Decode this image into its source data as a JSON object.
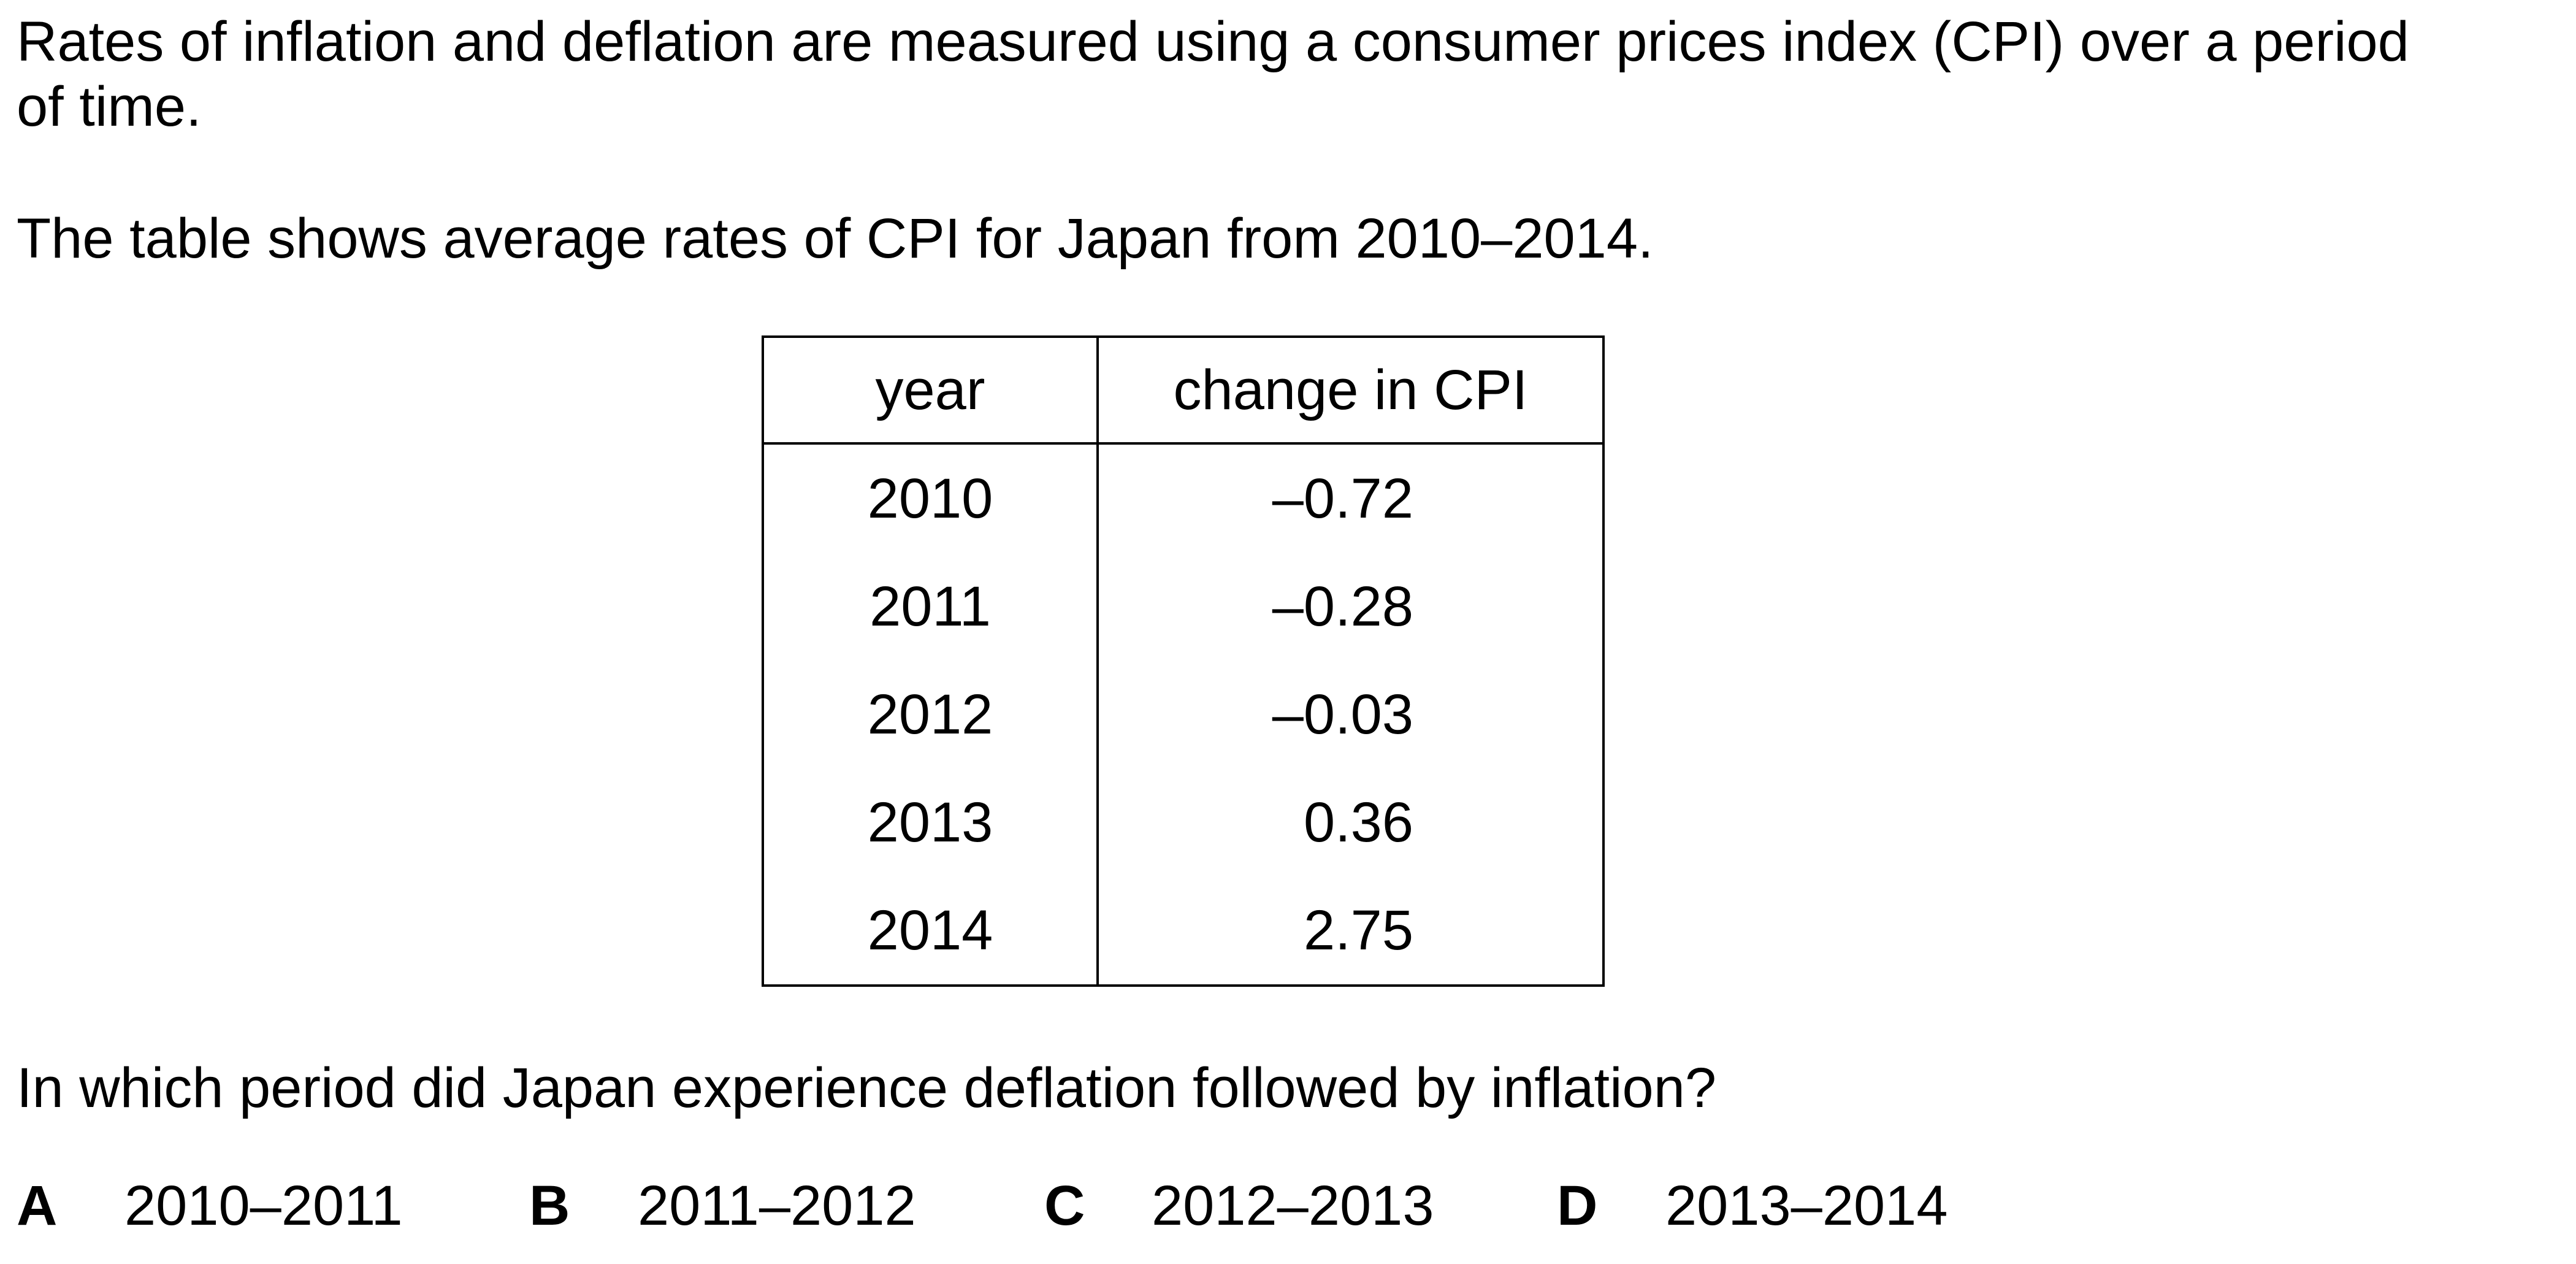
{
  "intro": {
    "line1": "Rates of inflation and deflation are measured using a consumer prices index (CPI) over a period",
    "line2": "of time."
  },
  "table_intro": "The table shows average rates of CPI for Japan from 2010–2014.",
  "table": {
    "headers": [
      "year",
      "change in CPI"
    ],
    "rows": [
      {
        "year": "2010",
        "change": "–0.72"
      },
      {
        "year": "2011",
        "change": "–0.28"
      },
      {
        "year": "2012",
        "change": "–0.03"
      },
      {
        "year": "2013",
        "change": "0.36"
      },
      {
        "year": "2014",
        "change": "2.75"
      }
    ]
  },
  "question": "In which period did Japan experience deflation followed by inflation?",
  "options": [
    {
      "letter": "A",
      "text": "2010–2011"
    },
    {
      "letter": "B",
      "text": "2011–2012"
    },
    {
      "letter": "C",
      "text": "2012–2013"
    },
    {
      "letter": "D",
      "text": "2013–2014"
    }
  ]
}
